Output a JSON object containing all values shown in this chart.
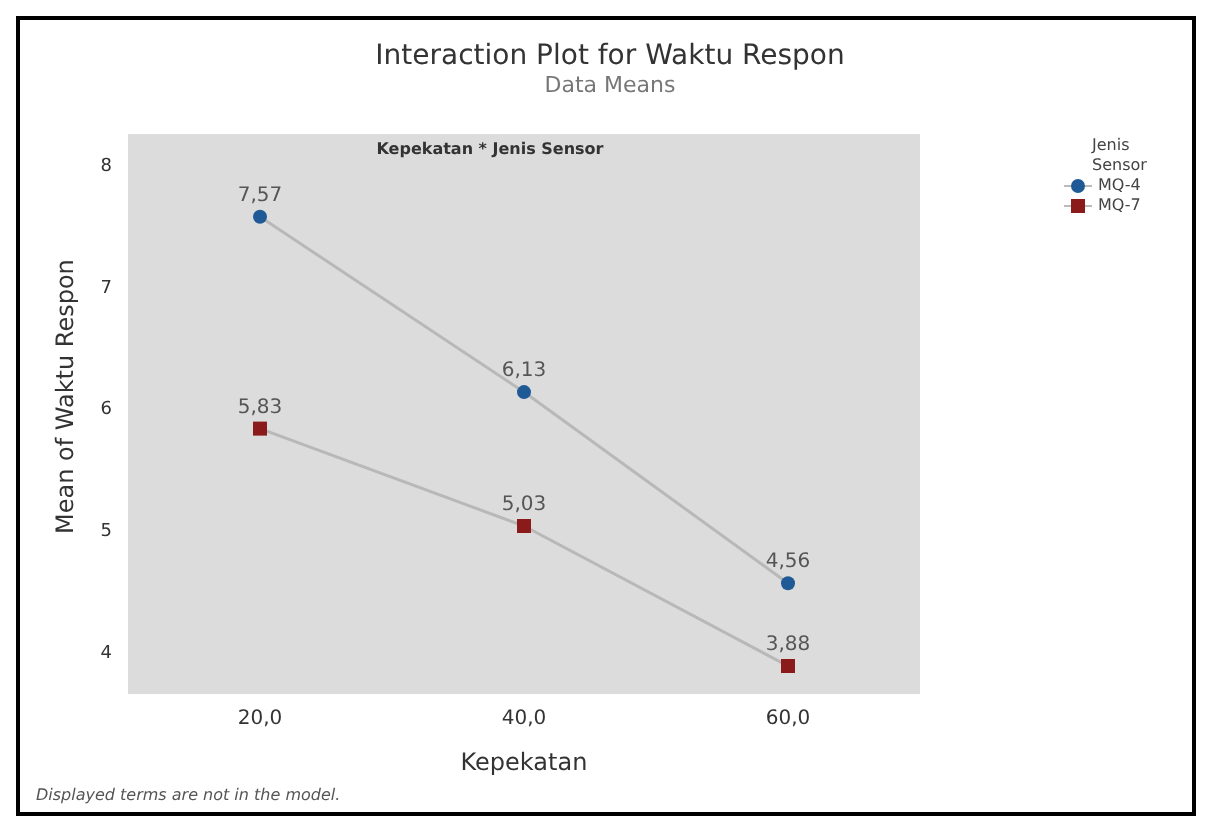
{
  "chart_data": {
    "type": "line",
    "title": "Interaction Plot for Waktu Respon",
    "subtitle": "Data Means",
    "xlabel": "Kepekatan",
    "ylabel": "Mean of Waktu Respon",
    "legend_title": "Jenis Sensor",
    "legend": "top right",
    "x": [
      20,
      40,
      60
    ],
    "xlim": [
      10,
      70
    ],
    "xticks": [
      {
        "value": 20,
        "label": "20,0"
      },
      {
        "value": 40,
        "label": "40,0"
      },
      {
        "value": 60,
        "label": "60,0"
      }
    ],
    "ylim": [
      3.65,
      8.25
    ],
    "yticks": [
      4,
      5,
      6,
      7,
      8
    ],
    "series": [
      {
        "name": "MQ-4",
        "color": "#1f5a96",
        "marker": "circle",
        "values": [
          7.57,
          6.13,
          4.56
        ],
        "value_labels": [
          "7,57",
          "6,13",
          "4,56"
        ]
      },
      {
        "name": "MQ-7",
        "color": "#8b1a1a",
        "marker": "square",
        "values": [
          5.83,
          5.03,
          3.88
        ],
        "value_labels": [
          "5,83",
          "5,03",
          "3,88"
        ]
      }
    ],
    "annotations": [
      "Kepekatan * Jenis Sensor",
      "Displayed terms are not in the model."
    ]
  }
}
